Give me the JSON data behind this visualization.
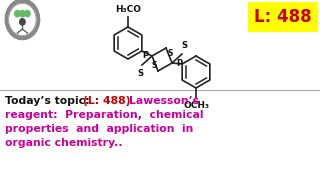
{
  "background_color": "#ffffff",
  "label_box_color": "#ffff00",
  "label_text": "L: 488",
  "label_text_color": "#cc0000",
  "text_line1_black": "Today’s topic: ",
  "text_line1_red": "(L: 488) ",
  "text_line1_magenta": "Lawesson’s",
  "text_line2": "reagent:   Preparation,   chemical",
  "text_line3": "properties  and  application  in",
  "text_line4": "organic chemistry..",
  "magenta_color": "#cc0099",
  "red_color": "#cc0000",
  "black_color": "#111111",
  "divider_color": "#aaaaaa",
  "font_size_label": 12,
  "font_size_body": 7.8,
  "font_size_mol": 6.0
}
